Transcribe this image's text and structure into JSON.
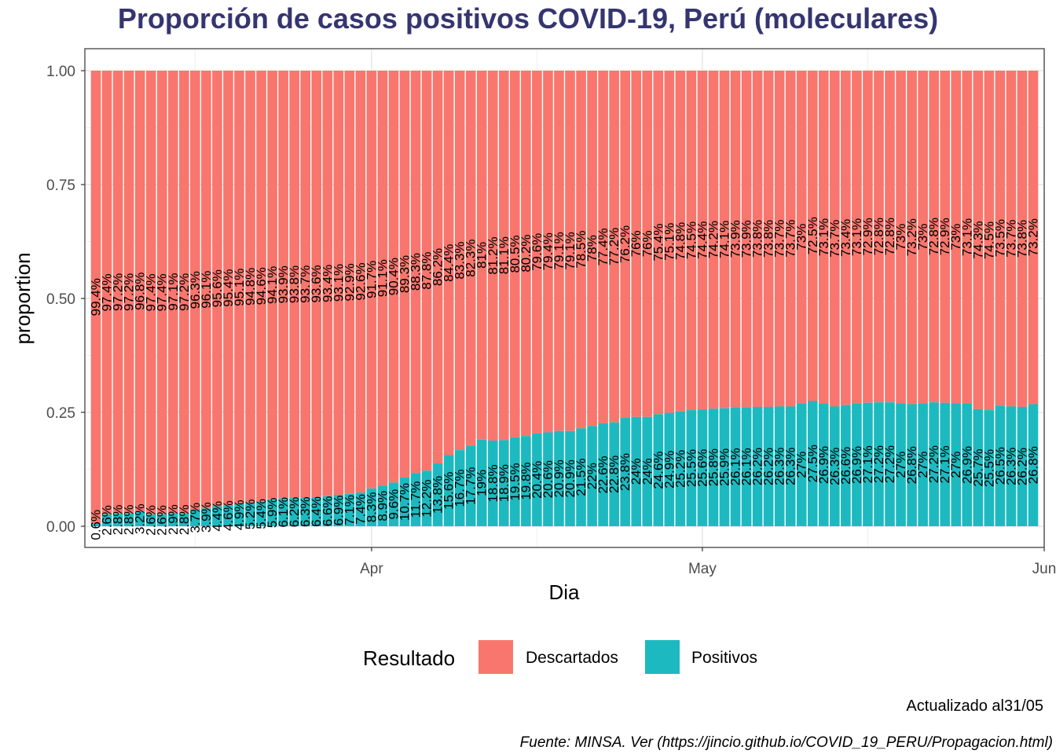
{
  "chart_data": {
    "type": "bar",
    "stacked": true,
    "title": "Proporción de casos positivos COVID-19, Perú (moleculares)",
    "xlabel": "Dia",
    "ylabel": "proportion",
    "ylim": [
      0,
      1
    ],
    "yticks": [
      {
        "value": 0,
        "label": "0.00"
      },
      {
        "value": 0.25,
        "label": "0.25"
      },
      {
        "value": 0.5,
        "label": "0.50"
      },
      {
        "value": 0.75,
        "label": "0.75"
      },
      {
        "value": 1,
        "label": "1.00"
      }
    ],
    "xlim": [
      "2020-03-06",
      "2020-06-01"
    ],
    "xticks": [
      {
        "value": "2020-04-01",
        "label": "Apr"
      },
      {
        "value": "2020-05-01",
        "label": "May"
      },
      {
        "value": "2020-06-01",
        "label": "Jun"
      }
    ],
    "grid": true,
    "legend_position": "bottom",
    "legend_title": "Resultado",
    "colors": {
      "Descartados": "#F8766D",
      "Positivos": "#1CBAC0"
    },
    "x": [
      "2020-03-07",
      "2020-03-08",
      "2020-03-09",
      "2020-03-10",
      "2020-03-11",
      "2020-03-12",
      "2020-03-13",
      "2020-03-14",
      "2020-03-15",
      "2020-03-16",
      "2020-03-17",
      "2020-03-18",
      "2020-03-19",
      "2020-03-20",
      "2020-03-21",
      "2020-03-22",
      "2020-03-23",
      "2020-03-24",
      "2020-03-25",
      "2020-03-26",
      "2020-03-27",
      "2020-03-28",
      "2020-03-29",
      "2020-03-30",
      "2020-03-31",
      "2020-04-01",
      "2020-04-02",
      "2020-04-03",
      "2020-04-04",
      "2020-04-05",
      "2020-04-06",
      "2020-04-07",
      "2020-04-08",
      "2020-04-09",
      "2020-04-10",
      "2020-04-11",
      "2020-04-12",
      "2020-04-13",
      "2020-04-14",
      "2020-04-15",
      "2020-04-16",
      "2020-04-17",
      "2020-04-18",
      "2020-04-19",
      "2020-04-20",
      "2020-04-21",
      "2020-04-22",
      "2020-04-23",
      "2020-04-24",
      "2020-04-25",
      "2020-04-26",
      "2020-04-27",
      "2020-04-28",
      "2020-04-29",
      "2020-04-30",
      "2020-05-01",
      "2020-05-02",
      "2020-05-03",
      "2020-05-04",
      "2020-05-05",
      "2020-05-06",
      "2020-05-07",
      "2020-05-08",
      "2020-05-09",
      "2020-05-10",
      "2020-05-11",
      "2020-05-12",
      "2020-05-13",
      "2020-05-14",
      "2020-05-15",
      "2020-05-16",
      "2020-05-17",
      "2020-05-18",
      "2020-05-19",
      "2020-05-20",
      "2020-05-21",
      "2020-05-22",
      "2020-05-23",
      "2020-05-24",
      "2020-05-25",
      "2020-05-26",
      "2020-05-27",
      "2020-05-28",
      "2020-05-29",
      "2020-05-30",
      "2020-05-31"
    ],
    "series": [
      {
        "name": "Positivos",
        "values": [
          0.006,
          0.026,
          0.028,
          0.028,
          0.032,
          0.026,
          0.026,
          0.029,
          0.028,
          0.037,
          0.039,
          0.044,
          0.046,
          0.049,
          0.052,
          0.054,
          0.059,
          0.061,
          0.062,
          0.063,
          0.064,
          0.066,
          0.069,
          0.071,
          0.074,
          0.083,
          0.089,
          0.096,
          0.107,
          0.117,
          0.122,
          0.138,
          0.156,
          0.167,
          0.177,
          0.19,
          0.188,
          0.189,
          0.195,
          0.198,
          0.204,
          0.206,
          0.209,
          0.209,
          0.215,
          0.22,
          0.226,
          0.228,
          0.238,
          0.24,
          0.24,
          0.246,
          0.249,
          0.252,
          0.255,
          0.256,
          0.258,
          0.259,
          0.261,
          0.261,
          0.262,
          0.262,
          0.263,
          0.263,
          0.27,
          0.275,
          0.269,
          0.263,
          0.266,
          0.269,
          0.271,
          0.272,
          0.272,
          0.27,
          0.268,
          0.27,
          0.272,
          0.271,
          0.27,
          0.269,
          0.257,
          0.255,
          0.265,
          0.263,
          0.262,
          0.268
        ]
      },
      {
        "name": "Descartados",
        "values": [
          0.994,
          0.974,
          0.972,
          0.972,
          0.968,
          0.974,
          0.974,
          0.971,
          0.972,
          0.963,
          0.961,
          0.956,
          0.954,
          0.951,
          0.948,
          0.946,
          0.941,
          0.939,
          0.938,
          0.937,
          0.936,
          0.934,
          0.931,
          0.929,
          0.926,
          0.917,
          0.911,
          0.904,
          0.893,
          0.883,
          0.878,
          0.862,
          0.844,
          0.833,
          0.823,
          0.81,
          0.812,
          0.811,
          0.805,
          0.802,
          0.796,
          0.794,
          0.791,
          0.791,
          0.785,
          0.78,
          0.774,
          0.772,
          0.762,
          0.76,
          0.76,
          0.754,
          0.751,
          0.748,
          0.745,
          0.744,
          0.742,
          0.741,
          0.739,
          0.739,
          0.738,
          0.738,
          0.737,
          0.737,
          0.73,
          0.725,
          0.731,
          0.737,
          0.734,
          0.731,
          0.729,
          0.728,
          0.728,
          0.73,
          0.732,
          0.73,
          0.728,
          0.729,
          0.73,
          0.731,
          0.743,
          0.745,
          0.735,
          0.737,
          0.738,
          0.732
        ]
      }
    ]
  },
  "legend": {
    "title": "Resultado",
    "items": [
      {
        "label": "Descartados",
        "color": "#F8766D"
      },
      {
        "label": "Positivos",
        "color": "#1CBAC0"
      }
    ]
  },
  "caption": {
    "updated": "Actualizado al31/05",
    "source": "Fuente: MINSA. Ver (https://jincio.github.io/COVID_19_PERU/Propagacion.html)"
  }
}
